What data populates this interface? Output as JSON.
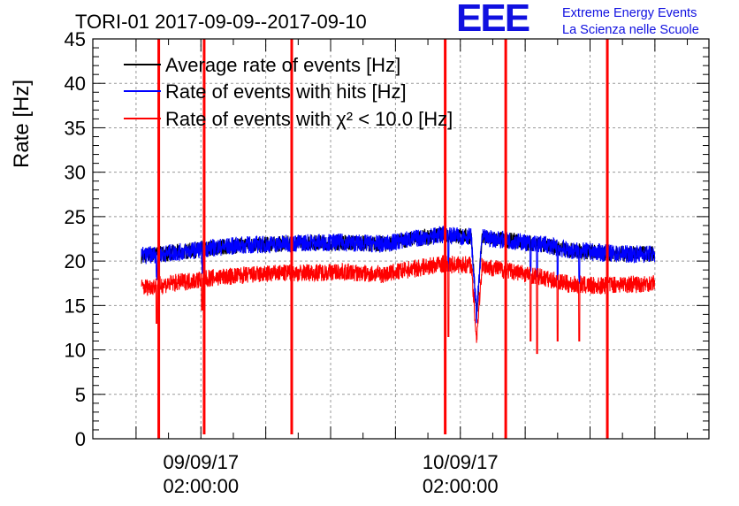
{
  "logo": {
    "mark": "EEE",
    "line1": "Extreme Energy Events",
    "line2": "La Scienza nelle Scuole"
  },
  "chart_data": {
    "type": "line",
    "title": "TORI-01 2017-09-09--2017-09-10",
    "xlabel": "",
    "ylabel": "Rate [Hz]",
    "ylim": [
      0,
      45
    ],
    "yticks": [
      0,
      5,
      10,
      15,
      20,
      25,
      30,
      35,
      40,
      45
    ],
    "xticks": [
      {
        "hours": 2,
        "line1": "09/09/17",
        "line2": "02:00:00"
      },
      {
        "hours": 26,
        "line1": "10/09/17",
        "line2": "02:00:00"
      }
    ],
    "grid": true,
    "legend_position": "top-left",
    "colors": {
      "average": "#000000",
      "hits": "#0000ff",
      "chi2": "#ff0000"
    },
    "series": [
      {
        "name": "Average rate of events [Hz]",
        "color": "#000000",
        "note": "overlaps the blue series"
      },
      {
        "name": "Rate of events with hits [Hz]",
        "color": "#0000ff",
        "x": [
          -3.5,
          0,
          3,
          6,
          9,
          12,
          15,
          17,
          19,
          21,
          23.5,
          24.5,
          25.5,
          27.0,
          27.5,
          28.0,
          30,
          32,
          34,
          36,
          38.5,
          40.5,
          42.5,
          44
        ],
        "y": [
          20.6,
          21.0,
          21.5,
          21.8,
          21.9,
          22.1,
          22.1,
          22.0,
          21.9,
          22.4,
          22.8,
          23.0,
          22.8,
          22.8,
          13.8,
          22.6,
          22.4,
          22.1,
          21.8,
          21.2,
          21.0,
          20.8,
          20.8,
          20.8
        ]
      },
      {
        "name": "Rate of events with χ² < 10.0 [Hz]",
        "color": "#ff0000",
        "x": [
          -3.5,
          0,
          3,
          6,
          9,
          12,
          15,
          17,
          19,
          21,
          23.5,
          24.5,
          25.5,
          27.0,
          27.5,
          28.0,
          30,
          32,
          34,
          36,
          38.5,
          40.5,
          42.5,
          44
        ],
        "y": [
          17.0,
          17.6,
          18.1,
          18.4,
          18.6,
          18.7,
          18.8,
          18.6,
          18.5,
          19.0,
          19.5,
          19.7,
          19.6,
          19.6,
          11.2,
          19.5,
          19.0,
          18.6,
          18.0,
          17.4,
          17.2,
          17.4,
          17.4,
          17.6
        ]
      }
    ],
    "spikes": [
      {
        "x": -1.9,
        "top": 45,
        "bottom": 0,
        "color": "#ff0000"
      },
      {
        "x": 2.3,
        "top": 45,
        "bottom": 0.5,
        "color": "#ff0000"
      },
      {
        "x": 10.4,
        "top": 45,
        "bottom": 0.5,
        "color": "#ff0000"
      },
      {
        "x": 24.6,
        "top": 45,
        "bottom": 0.5,
        "color": "#ff0000"
      },
      {
        "x": 30.2,
        "top": 45,
        "bottom": 0,
        "color": "#ff0000"
      },
      {
        "x": 39.6,
        "top": 45,
        "bottom": 0,
        "color": "#ff0000"
      }
    ],
    "dips": [
      {
        "x": 32.5,
        "y": 11.0
      },
      {
        "x": 33.1,
        "y": 9.6
      },
      {
        "x": 35.0,
        "y": 11.0
      },
      {
        "x": 37.0,
        "y": 11.0
      },
      {
        "x": 24.9,
        "y": 11.5
      },
      {
        "x": 2.1,
        "y": 14.5
      },
      {
        "x": -2.1,
        "y": 13.0
      }
    ]
  }
}
